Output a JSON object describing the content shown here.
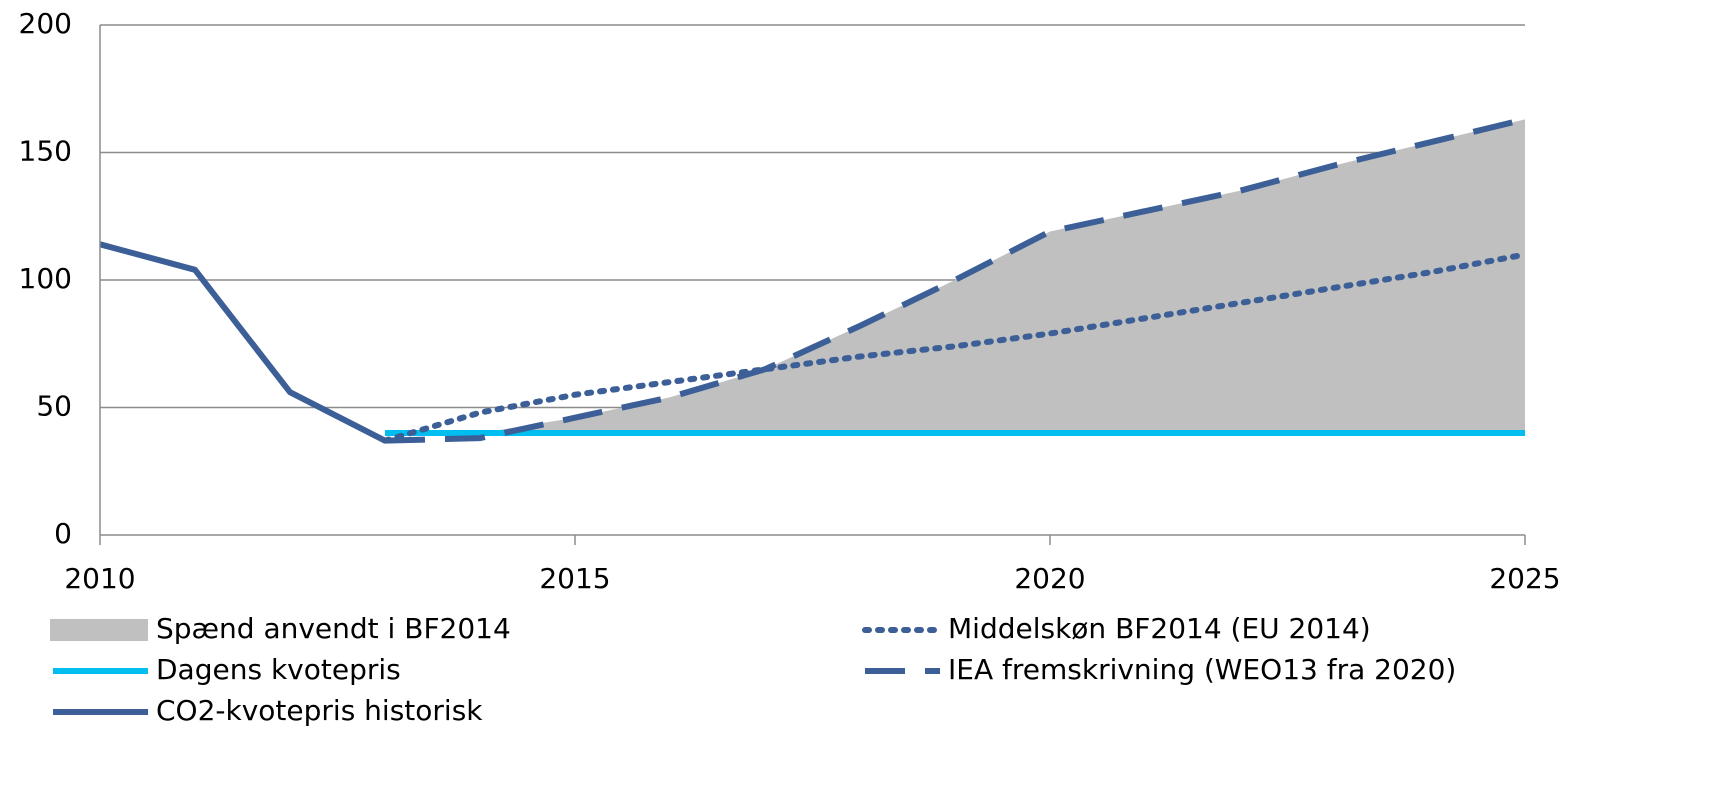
{
  "chart_data": {
    "type": "line",
    "x": [
      2010,
      2011,
      2012,
      2013,
      2014,
      2015,
      2016,
      2017,
      2018,
      2019,
      2020,
      2021,
      2022,
      2023,
      2024,
      2025
    ],
    "xlim": [
      2010,
      2025
    ],
    "xticks": [
      2010,
      2015,
      2020,
      2025
    ],
    "ylim": [
      0,
      200
    ],
    "yticks": [
      0,
      50,
      100,
      150,
      200
    ],
    "grid": true,
    "series": [
      {
        "name": "Spænd anvendt i BF2014",
        "color": "#c0c0c0",
        "style": "area",
        "base": [
          null,
          null,
          null,
          40,
          40,
          40,
          40,
          40,
          40,
          40,
          40,
          40,
          40,
          40,
          40,
          40
        ],
        "values": [
          null,
          null,
          null,
          40,
          40,
          46,
          54,
          65,
          82,
          100,
          119,
          127,
          135,
          145,
          154,
          163
        ]
      },
      {
        "name": "Dagens kvotepris",
        "color": "#00bef0",
        "style": "solid",
        "values": [
          null,
          null,
          null,
          40,
          40,
          40,
          40,
          40,
          40,
          40,
          40,
          40,
          40,
          40,
          40,
          40
        ]
      },
      {
        "name": "CO2-kvotepris historisk",
        "color": "#3b5f96",
        "style": "solid",
        "values": [
          114,
          104,
          56,
          37,
          null,
          null,
          null,
          null,
          null,
          null,
          null,
          null,
          null,
          null,
          null,
          null
        ]
      },
      {
        "name": "Middelskøn BF2014 (EU 2014)",
        "color": "#3b5f96",
        "style": "dotted",
        "values": [
          null,
          null,
          null,
          37,
          48,
          55,
          60,
          65,
          70,
          74,
          79,
          85,
          91,
          97,
          103,
          110
        ]
      },
      {
        "name": "IEA fremskrivning (WEO13 fra 2020)",
        "color": "#3b5f96",
        "style": "dashed",
        "values": [
          null,
          null,
          null,
          37,
          38,
          46,
          54,
          65,
          82,
          100,
          119,
          127,
          135,
          145,
          154,
          163
        ]
      }
    ]
  }
}
